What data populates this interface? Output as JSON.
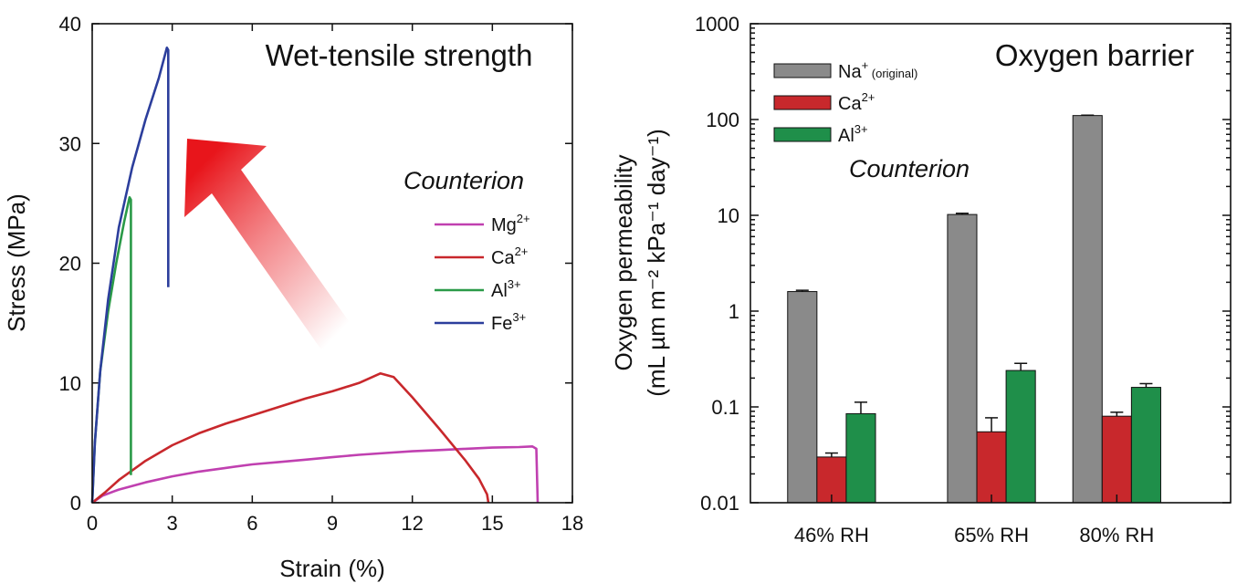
{
  "chart_data": [
    {
      "type": "line",
      "title": "Wet-tensile strength",
      "xlabel": "Strain (%)",
      "ylabel": "Stress (MPa)",
      "xlim": [
        0,
        18
      ],
      "ylim": [
        0,
        40
      ],
      "xticks": [
        "0",
        "3",
        "6",
        "9",
        "12",
        "15",
        "18"
      ],
      "yticks": [
        "0",
        "10",
        "20",
        "30",
        "40"
      ],
      "legend_title": "Counterion",
      "legend_position": "right",
      "annotation": "red gradient arrow pointing toward higher strength",
      "series": [
        {
          "name": "Mg",
          "sup": "2+",
          "color": "#c040b0",
          "x": [
            0,
            0.4,
            1,
            2,
            3,
            4,
            5,
            6,
            7,
            8,
            9,
            10,
            11,
            12,
            13,
            14,
            15,
            16,
            16.5,
            16.65,
            16.7
          ],
          "y": [
            0,
            0.6,
            1.1,
            1.7,
            2.2,
            2.6,
            2.9,
            3.2,
            3.4,
            3.6,
            3.8,
            4.0,
            4.15,
            4.3,
            4.4,
            4.5,
            4.6,
            4.65,
            4.7,
            4.5,
            0
          ]
        },
        {
          "name": "Ca",
          "sup": "2+",
          "color": "#c8282c",
          "x": [
            0,
            0.5,
            1,
            2,
            3,
            4,
            5,
            6,
            7,
            8,
            9,
            10,
            10.8,
            11.3,
            12,
            13,
            14,
            14.5,
            14.8,
            14.85
          ],
          "y": [
            0,
            0.9,
            1.9,
            3.5,
            4.8,
            5.8,
            6.6,
            7.3,
            8.0,
            8.7,
            9.3,
            10.0,
            10.8,
            10.5,
            8.8,
            6.2,
            3.5,
            2.0,
            0.7,
            0
          ]
        },
        {
          "name": "Al",
          "sup": "3+",
          "color": "#2a9a48",
          "x": [
            0,
            0.1,
            0.3,
            0.6,
            0.9,
            1.2,
            1.4,
            1.45,
            1.45
          ],
          "y": [
            0,
            5,
            11,
            16,
            20,
            23.5,
            25.5,
            25.3,
            2.3
          ]
        },
        {
          "name": "Fe",
          "sup": "3+",
          "color": "#2c3e9c",
          "x": [
            0,
            0.1,
            0.3,
            0.6,
            1,
            1.5,
            2,
            2.5,
            2.8,
            2.85,
            2.85
          ],
          "y": [
            0,
            5,
            11,
            17,
            23,
            28,
            32,
            35.5,
            38,
            37.8,
            18
          ]
        }
      ]
    },
    {
      "type": "bar",
      "title": "Oxygen barrier",
      "ylabel_line1": "Oxygen permeability",
      "ylabel_line2": "(mL µm m⁻² kPa⁻¹ day⁻¹)",
      "yscale": "log",
      "ylim": [
        0.01,
        1000
      ],
      "yticks": [
        "0.01",
        "0.1",
        "1",
        "10",
        "100",
        "1000"
      ],
      "categories": [
        "46% RH",
        "65% RH",
        "80% RH"
      ],
      "legend_title": "Counterion",
      "legend_position": "top-left",
      "series": [
        {
          "name": "Na",
          "sup": "+",
          "suffix": " (original)",
          "color": "#8a8a8a",
          "values": [
            1.6,
            10.2,
            110
          ],
          "errors": [
            0.05,
            0.3,
            1
          ]
        },
        {
          "name": "Ca",
          "sup": "2+",
          "suffix": "",
          "color": "#c8282c",
          "values": [
            0.03,
            0.055,
            0.08
          ],
          "errors": [
            0.003,
            0.022,
            0.008
          ]
        },
        {
          "name": "Al",
          "sup": "3+",
          "suffix": "",
          "color": "#1f8f4a",
          "values": [
            0.085,
            0.24,
            0.16
          ],
          "errors": [
            0.027,
            0.045,
            0.015
          ]
        }
      ]
    }
  ]
}
